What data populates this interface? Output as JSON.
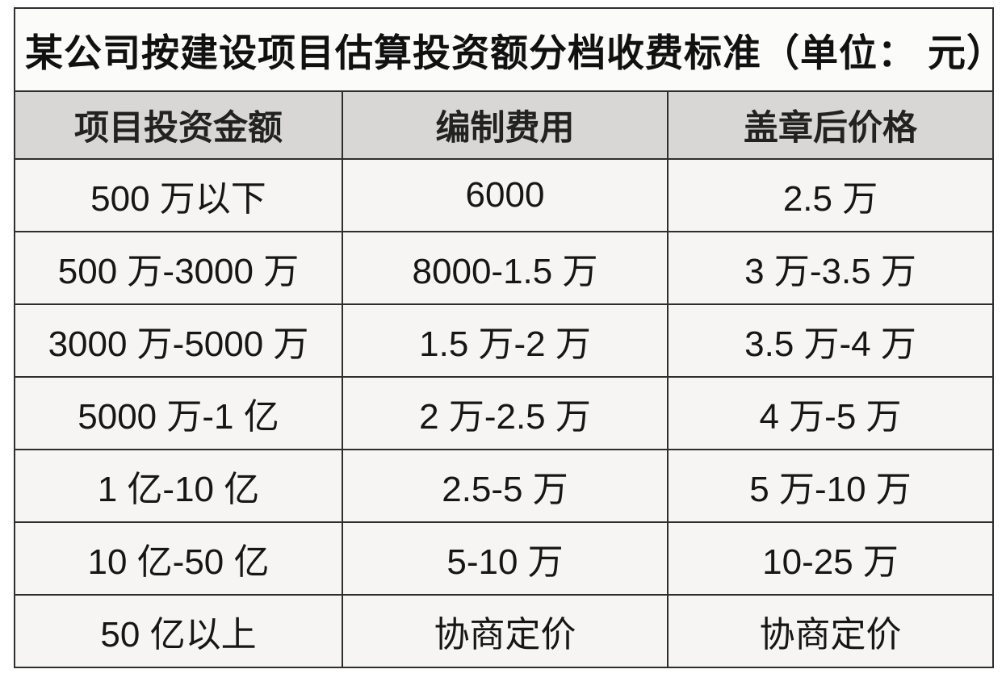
{
  "chart_data": {
    "type": "table",
    "title": "某公司按建设项目估算投资额分档收费标准（单位： 元）",
    "columns": [
      "项目投资金额",
      "编制费用",
      "盖章后价格"
    ],
    "rows": [
      [
        "500 万以下",
        "6000",
        "2.5 万"
      ],
      [
        "500 万-3000 万",
        "8000-1.5 万",
        "3 万-3.5 万"
      ],
      [
        "3000 万-5000 万",
        "1.5 万-2 万",
        "3.5 万-4 万"
      ],
      [
        "5000 万-1 亿",
        "2 万-2.5 万",
        "4 万-5 万"
      ],
      [
        "1 亿-10 亿",
        "2.5-5 万",
        "5 万-10 万"
      ],
      [
        "10 亿-50 亿",
        "5-10 万",
        "10-25 万"
      ],
      [
        "50 亿以上",
        "协商定价",
        "协商定价"
      ]
    ]
  },
  "colors": {
    "border": "#2e2e2e",
    "header_bg": "#d8d7d5",
    "body_bg": "#f6f5f3",
    "title_bg": "#fbfbfa",
    "page_bg": "#ffffff",
    "text": "#161616"
  }
}
